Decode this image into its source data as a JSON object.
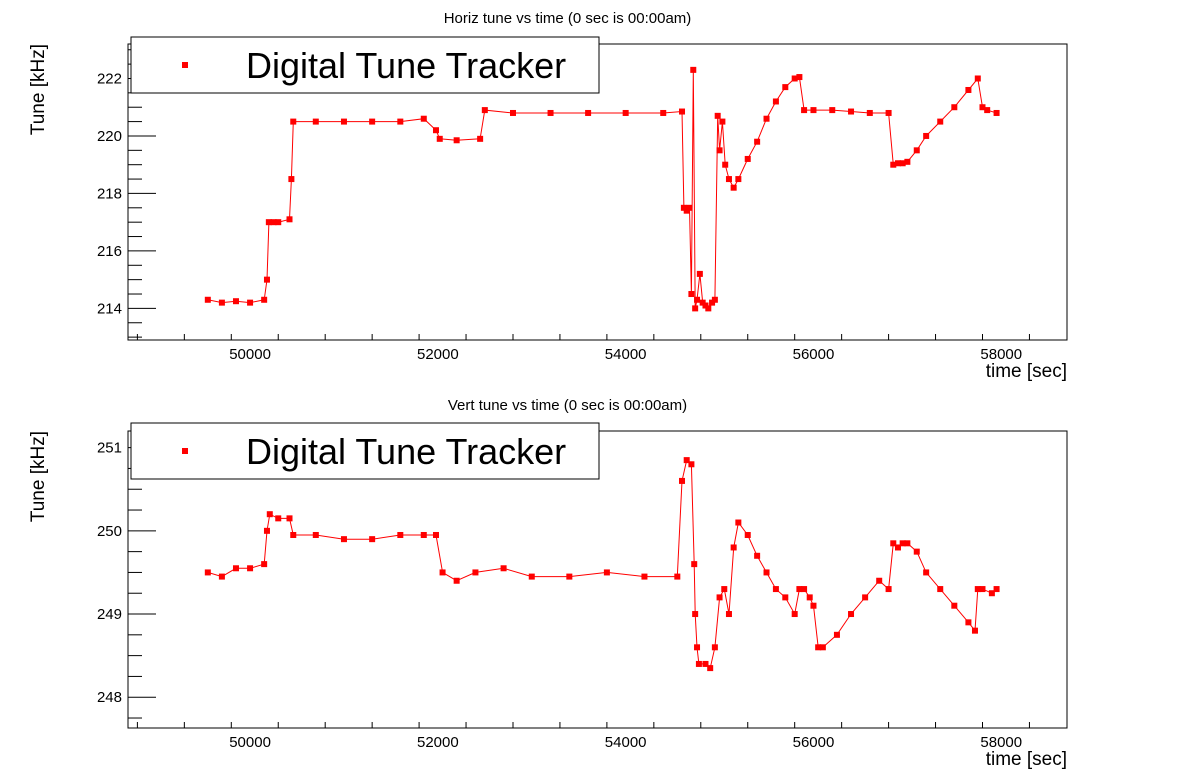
{
  "chart_data": [
    {
      "type": "scatter",
      "title": "Horiz tune vs time (0 sec is 00:00am)",
      "xlabel": "time [sec]",
      "ylabel": "Tune [kHz]",
      "xlim": [
        48700,
        58700
      ],
      "ylim": [
        212.9,
        223.2
      ],
      "xticks": [
        50000,
        52000,
        54000,
        56000,
        58000
      ],
      "xtick_labels": [
        "50000",
        "52000",
        "54000",
        "56000",
        "58000"
      ],
      "yticks": [
        214,
        216,
        218,
        220,
        222
      ],
      "ytick_labels": [
        "214",
        "216",
        "218",
        "220",
        "222"
      ],
      "grid": false,
      "legend": {
        "position": "top-left",
        "entries": [
          "Digital Tune Tracker"
        ]
      },
      "series": [
        {
          "name": "Digital Tune Tracker",
          "color": "#ff0000",
          "x": [
            49550,
            49700,
            49850,
            50000,
            50150,
            50180,
            50200,
            50250,
            50300,
            50420,
            50440,
            50460,
            50700,
            51000,
            51300,
            51600,
            51850,
            51980,
            52020,
            52200,
            52450,
            52500,
            52800,
            53200,
            53600,
            54000,
            54400,
            54600,
            54620,
            54650,
            54680,
            54700,
            54720,
            54740,
            54760,
            54790,
            54820,
            54850,
            54880,
            54920,
            54950,
            54980,
            55000,
            55030,
            55060,
            55100,
            55150,
            55200,
            55300,
            55400,
            55500,
            55600,
            55700,
            55800,
            55850,
            55900,
            56000,
            56200,
            56400,
            56600,
            56800,
            56850,
            56900,
            56950,
            57000,
            57100,
            57200,
            57350,
            57500,
            57650,
            57750,
            57800,
            57850,
            57950
          ],
          "y": [
            214.3,
            214.2,
            214.25,
            214.2,
            214.3,
            215.0,
            217.0,
            217.0,
            217.0,
            217.1,
            218.5,
            220.5,
            220.5,
            220.5,
            220.5,
            220.5,
            220.6,
            220.2,
            219.9,
            219.85,
            219.9,
            220.9,
            220.8,
            220.8,
            220.8,
            220.8,
            220.8,
            220.85,
            217.5,
            217.4,
            217.5,
            214.5,
            222.3,
            214.0,
            214.3,
            215.2,
            214.2,
            214.1,
            214.0,
            214.2,
            214.3,
            220.7,
            219.5,
            220.5,
            219.0,
            218.5,
            218.2,
            218.5,
            219.2,
            219.8,
            220.6,
            221.2,
            221.7,
            222.0,
            222.05,
            220.9,
            220.9,
            220.9,
            220.85,
            220.8,
            220.8,
            219.0,
            219.05,
            219.05,
            219.1,
            219.5,
            220.0,
            220.5,
            221.0,
            221.6,
            222.0,
            221.0,
            220.9,
            220.8
          ]
        }
      ]
    },
    {
      "type": "scatter",
      "title": "Vert tune vs time (0 sec is 00:00am)",
      "xlabel": "time [sec]",
      "ylabel": "Tune [kHz]",
      "xlim": [
        48700,
        58700
      ],
      "ylim": [
        247.63,
        251.2
      ],
      "xticks": [
        50000,
        52000,
        54000,
        56000,
        58000
      ],
      "xtick_labels": [
        "50000",
        "52000",
        "54000",
        "56000",
        "58000"
      ],
      "yticks": [
        248,
        249,
        250,
        251
      ],
      "ytick_labels": [
        "248",
        "249",
        "250",
        "251"
      ],
      "grid": false,
      "legend": {
        "position": "top-left",
        "entries": [
          "Digital Tune Tracker"
        ]
      },
      "series": [
        {
          "name": "Digital Tune Tracker",
          "color": "#ff0000",
          "x": [
            49550,
            49700,
            49850,
            50000,
            50150,
            50180,
            50210,
            50300,
            50420,
            50460,
            50700,
            51000,
            51300,
            51600,
            51850,
            51980,
            52050,
            52200,
            52400,
            52700,
            53000,
            53400,
            53800,
            54200,
            54550,
            54600,
            54650,
            54700,
            54730,
            54740,
            54760,
            54780,
            54850,
            54900,
            54950,
            55000,
            55050,
            55100,
            55150,
            55200,
            55300,
            55400,
            55500,
            55600,
            55700,
            55800,
            55850,
            55900,
            55960,
            56000,
            56050,
            56100,
            56250,
            56400,
            56550,
            56700,
            56800,
            56850,
            56900,
            56950,
            57000,
            57100,
            57200,
            57350,
            57500,
            57650,
            57720,
            57750,
            57800,
            57900,
            57950
          ],
          "y": [
            249.5,
            249.45,
            249.55,
            249.55,
            249.6,
            250.0,
            250.2,
            250.15,
            250.15,
            249.95,
            249.95,
            249.9,
            249.9,
            249.95,
            249.95,
            249.95,
            249.5,
            249.4,
            249.5,
            249.55,
            249.45,
            249.45,
            249.5,
            249.45,
            249.45,
            250.6,
            250.85,
            250.8,
            249.6,
            249.0,
            248.6,
            248.4,
            248.4,
            248.35,
            248.6,
            249.2,
            249.3,
            249.0,
            249.8,
            250.1,
            249.95,
            249.7,
            249.5,
            249.3,
            249.2,
            249.0,
            249.3,
            249.3,
            249.2,
            249.1,
            248.6,
            248.6,
            248.75,
            249.0,
            249.2,
            249.4,
            249.3,
            249.85,
            249.8,
            249.85,
            249.85,
            249.75,
            249.5,
            249.3,
            249.1,
            248.9,
            248.8,
            249.3,
            249.3,
            249.25,
            249.3
          ]
        }
      ]
    }
  ]
}
